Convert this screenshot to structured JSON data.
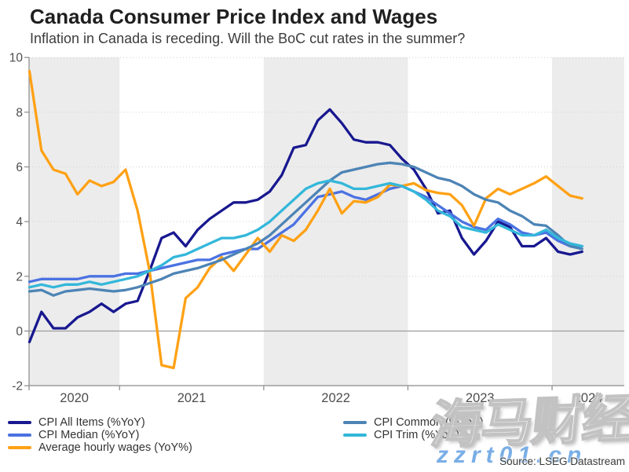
{
  "header": {
    "title": "Canada Consumer Price Index and Wages",
    "subtitle": "Inflation in Canada is receding. Will the BoC cut rates in the summer?"
  },
  "source_note": "Source: LSEG Datastream",
  "watermark": {
    "big_text": "海马财经",
    "small_text": "zzrt01.cn"
  },
  "colors": {
    "band_gray": "#ececec",
    "grid_dotted": "#d0d0d0",
    "zero_line": "#9c9c9c",
    "axis": "#8a8a8a",
    "tick_text": "#4d4d4d"
  },
  "chart_data": {
    "type": "line",
    "title": "Canada Consumer Price Index and Wages",
    "x_start": "2020-05",
    "frequency": "monthly",
    "n_points": 47,
    "x_tick_labels": [
      "2020",
      "2021",
      "2022",
      "2023",
      "2024"
    ],
    "ylim": [
      -2,
      10
    ],
    "y_ticks": [
      -2,
      0,
      2,
      4,
      6,
      8,
      10
    ],
    "grid": "horizontal dotted at 2,4,6,8,10; solid line at 0",
    "plot_bands": "alternating yearly shading gray/white starting gray for 2020",
    "legend_position": "bottom",
    "series": [
      {
        "name": "CPI All Items (%YoY)",
        "color": "#181890",
        "values": [
          -0.4,
          0.7,
          0.1,
          0.1,
          0.5,
          0.7,
          1.0,
          0.7,
          1.0,
          1.1,
          2.2,
          3.4,
          3.6,
          3.1,
          3.7,
          4.1,
          4.4,
          4.7,
          4.7,
          4.8,
          5.1,
          5.7,
          6.7,
          6.8,
          7.7,
          8.1,
          7.6,
          7.0,
          6.9,
          6.9,
          6.8,
          6.3,
          5.9,
          5.2,
          4.3,
          4.4,
          3.4,
          2.8,
          3.3,
          4.0,
          3.8,
          3.1,
          3.1,
          3.4,
          2.9,
          2.8,
          2.9
        ]
      },
      {
        "name": "CPI Median (%YoY)",
        "color": "#4b72e2",
        "values": [
          1.8,
          1.9,
          1.9,
          1.9,
          1.9,
          2.0,
          2.0,
          2.0,
          2.1,
          2.1,
          2.2,
          2.3,
          2.4,
          2.5,
          2.6,
          2.6,
          2.8,
          2.9,
          3.0,
          3.0,
          3.3,
          3.6,
          3.9,
          4.4,
          4.9,
          5.0,
          5.1,
          4.9,
          4.8,
          5.0,
          5.2,
          5.3,
          5.1,
          4.9,
          4.6,
          4.3,
          4.0,
          3.8,
          3.7,
          4.1,
          3.9,
          3.6,
          3.5,
          3.6,
          3.3,
          3.1,
          3.1
        ]
      },
      {
        "name": "Average hourly wages (YoY%)",
        "color": "#ffa115",
        "values": [
          9.5,
          6.6,
          5.9,
          5.75,
          5.0,
          5.5,
          5.3,
          5.45,
          5.9,
          4.4,
          2.2,
          -1.25,
          -1.35,
          1.2,
          1.6,
          2.3,
          2.7,
          2.2,
          2.8,
          3.4,
          2.9,
          3.5,
          3.3,
          3.7,
          4.4,
          5.2,
          4.3,
          4.75,
          4.7,
          4.9,
          5.35,
          5.3,
          5.4,
          5.15,
          5.05,
          5.0,
          4.6,
          3.85,
          4.85,
          5.2,
          5.0,
          5.2,
          5.4,
          5.65,
          5.3,
          4.95,
          4.85
        ]
      },
      {
        "name": "CPI Common (%YoY)",
        "color": "#4d84b5",
        "values": [
          1.45,
          1.5,
          1.3,
          1.45,
          1.5,
          1.55,
          1.5,
          1.45,
          1.5,
          1.6,
          1.75,
          1.9,
          2.1,
          2.2,
          2.3,
          2.45,
          2.6,
          2.8,
          3.0,
          3.2,
          3.5,
          3.9,
          4.3,
          4.7,
          5.1,
          5.5,
          5.8,
          5.9,
          6.0,
          6.1,
          6.15,
          6.1,
          6.0,
          5.8,
          5.6,
          5.5,
          5.3,
          5.0,
          4.8,
          4.7,
          4.4,
          4.2,
          3.9,
          3.85,
          3.5,
          3.1,
          3.0
        ]
      },
      {
        "name": "CPI Trim (%YoY)",
        "color": "#33b7da",
        "values": [
          1.6,
          1.7,
          1.6,
          1.7,
          1.7,
          1.8,
          1.7,
          1.8,
          1.9,
          2.0,
          2.2,
          2.4,
          2.7,
          2.8,
          3.0,
          3.2,
          3.4,
          3.4,
          3.5,
          3.7,
          4.0,
          4.4,
          4.8,
          5.2,
          5.4,
          5.5,
          5.4,
          5.2,
          5.2,
          5.3,
          5.4,
          5.3,
          5.1,
          4.8,
          4.4,
          4.2,
          3.8,
          3.7,
          3.6,
          3.9,
          3.7,
          3.5,
          3.5,
          3.7,
          3.4,
          3.2,
          3.1
        ]
      }
    ]
  }
}
